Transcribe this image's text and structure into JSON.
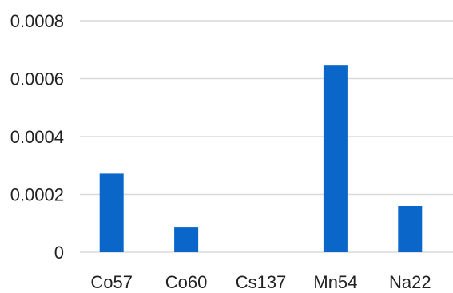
{
  "chart_data": {
    "type": "bar",
    "categories": [
      "Co57",
      "Co60",
      "Cs137",
      "Mn54",
      "Na22"
    ],
    "series": [
      {
        "values": [
          0.000272,
          8.8e-05,
          0.0,
          0.000645,
          0.00016
        ],
        "color": "#0a66c9"
      }
    ],
    "title": "",
    "xlabel": "",
    "ylabel": "",
    "ylim": [
      0,
      0.0008
    ],
    "yticks": [
      0,
      0.0002,
      0.0004,
      0.0006,
      0.0008
    ],
    "ytick_labels": [
      "0",
      "0.0002",
      "0.0004",
      "0.0006",
      "0.0008"
    ],
    "grid": true,
    "grid_color": "#d9d9d9",
    "legend": "none"
  }
}
